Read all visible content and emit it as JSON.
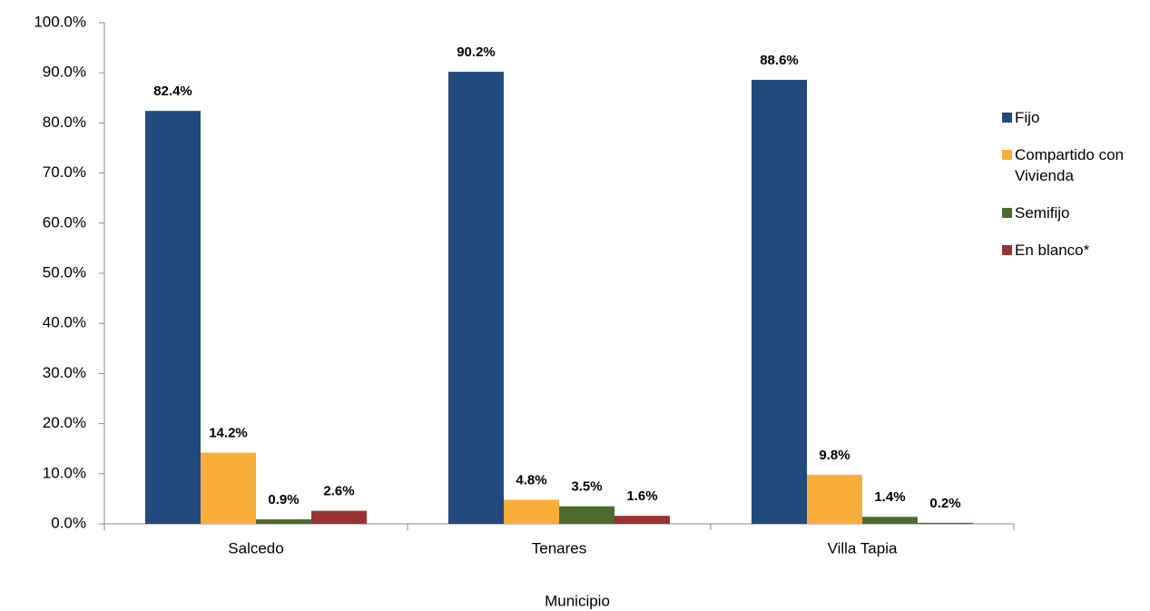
{
  "chart_data": {
    "type": "bar",
    "x_label": "Municipio",
    "categories": [
      "Salcedo",
      "Tenares",
      "Villa Tapia"
    ],
    "series": [
      {
        "name": "Fijo",
        "color": "#234a7c",
        "values": [
          82.4,
          90.2,
          88.6
        ],
        "value_labels": [
          "82.4%",
          "90.2%",
          "88.6%"
        ]
      },
      {
        "name": "Compartido con Vivienda",
        "color": "#f9ad3a",
        "values": [
          14.2,
          4.8,
          9.8
        ],
        "value_labels": [
          "14.2%",
          "4.8%",
          "9.8%"
        ]
      },
      {
        "name": "Semifijo",
        "color": "#4e6b2e",
        "values": [
          0.9,
          3.5,
          1.4
        ],
        "value_labels": [
          "0.9%",
          "3.5%",
          "1.4%"
        ]
      },
      {
        "name": "En blanco*",
        "color": "#993333",
        "values": [
          2.6,
          1.6,
          0.2
        ],
        "value_labels": [
          "2.6%",
          "1.6%",
          "0.2%"
        ]
      }
    ],
    "ylim": [
      0,
      100
    ],
    "yticks": [
      {
        "value": 0,
        "label": "0.0%"
      },
      {
        "value": 10,
        "label": "10.0%"
      },
      {
        "value": 20,
        "label": "20.0%"
      },
      {
        "value": 30,
        "label": "30.0%"
      },
      {
        "value": 40,
        "label": "40.0%"
      },
      {
        "value": 50,
        "label": "50.0%"
      },
      {
        "value": 60,
        "label": "60.0%"
      },
      {
        "value": 70,
        "label": "70.0%"
      },
      {
        "value": 80,
        "label": "80.0%"
      },
      {
        "value": 90,
        "label": "90.0%"
      },
      {
        "value": 100,
        "label": "100.0%"
      }
    ],
    "legend": "right"
  }
}
